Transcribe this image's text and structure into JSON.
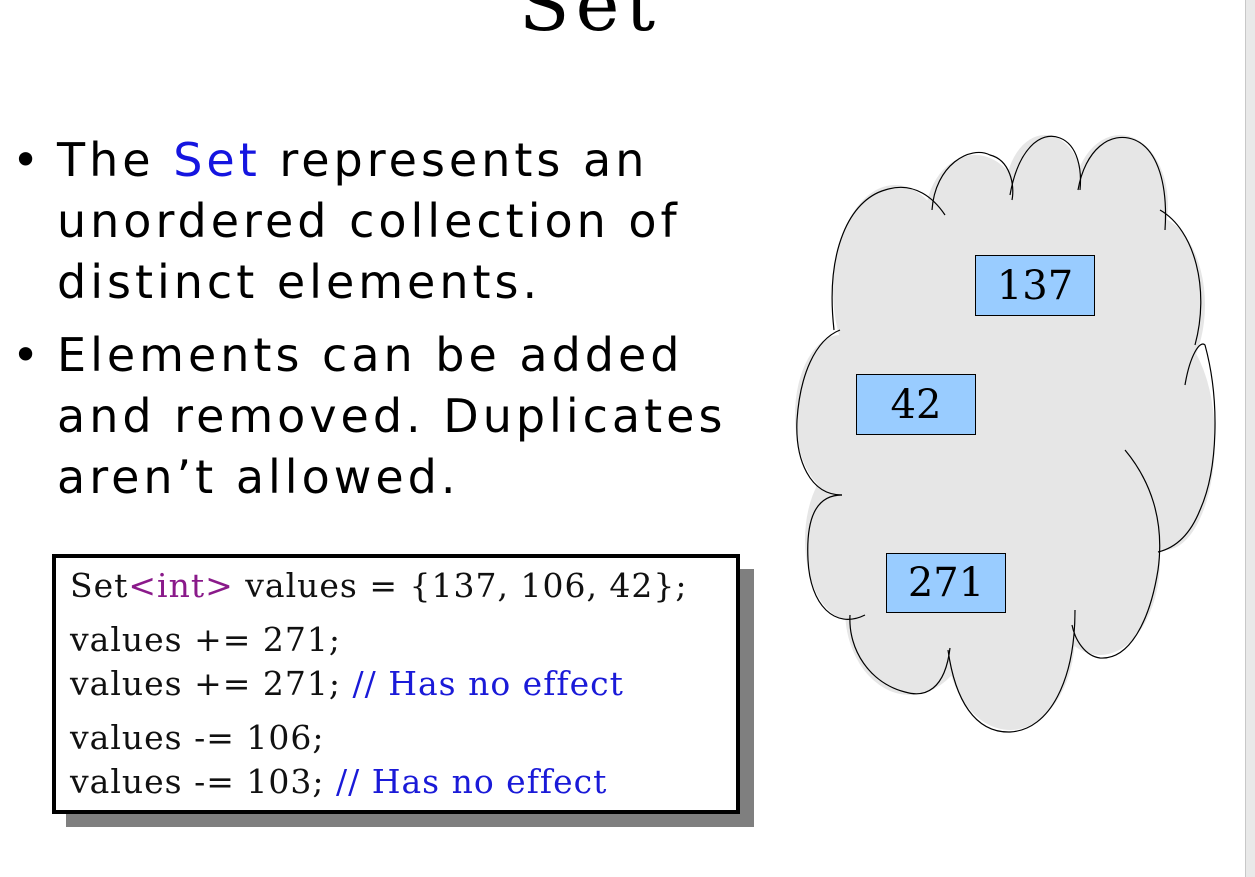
{
  "slide": {
    "title": "Set",
    "bullets": [
      {
        "pre": "The ",
        "highlight": "Set",
        "post": " represents an unordered collection of distinct elements."
      },
      {
        "text": "Elements can be added and removed. Duplicates aren’t allowed."
      }
    ],
    "code": {
      "line1_a": "Set",
      "line1_kw": "<int>",
      "line1_b": " values = {137, 106, 42};",
      "line2": "values += 271;",
      "line3_code": "values += 271; ",
      "line3_comment": "// Has no effect",
      "line4": "values -= 106;",
      "line5_code": "values -= 103; ",
      "line5_comment": "// Has no effect"
    },
    "set_elements": [
      "137",
      "42",
      "271"
    ]
  },
  "colors": {
    "highlight_blue": "#1515e0",
    "code_keyword": "#8a1a8a",
    "code_comment": "#1a1ad8",
    "element_fill": "#99ccff",
    "cloud_fill": "#e6e6e6"
  },
  "bullet_glyph": "•"
}
